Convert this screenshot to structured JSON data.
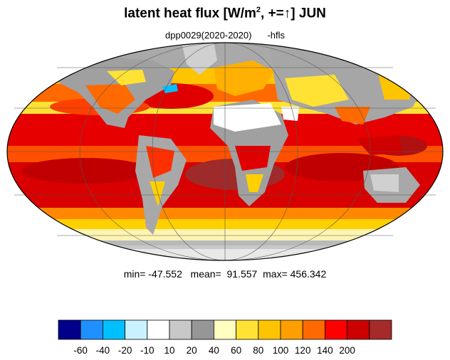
{
  "title": {
    "main": "latent heat flux [W/m",
    "sup": "2",
    "rest": ", +=",
    "arrow": "↑",
    "tail": "]  JUN"
  },
  "subtitle": {
    "run": "dpp0029(2020-2020)",
    "var": "-hfls"
  },
  "stats": {
    "min_label": "min=",
    "min": "-47.552",
    "mean_label": "mean=",
    "mean": "91.557",
    "max_label": "max=",
    "max": "456.342"
  },
  "map": {
    "projection": "mollweide",
    "ocean_field": "latent heat flux"
  },
  "colorbar": {
    "colors": [
      "#00008b",
      "#1e90ff",
      "#00bfff",
      "#c9f1ff",
      "#ffffff",
      "#c8c8c8",
      "#969696",
      "#ffffc0",
      "#ffe234",
      "#ffc400",
      "#ff9e00",
      "#ff6a00",
      "#ff0000",
      "#cc0000",
      "#a52a2a"
    ],
    "ticks": [
      "-60",
      "-40",
      "-20",
      "-10",
      "10",
      "20",
      "40",
      "60",
      "80",
      "100",
      "120",
      "140",
      "200"
    ]
  }
}
